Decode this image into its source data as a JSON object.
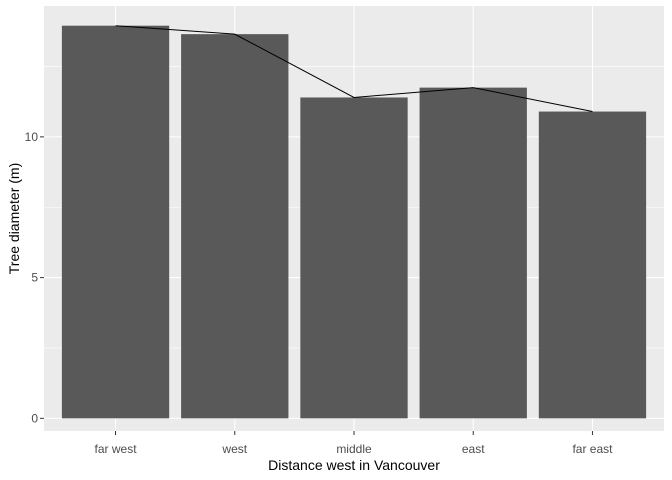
{
  "chart_data": {
    "type": "bar",
    "categories": [
      "far west",
      "west",
      "middle",
      "east",
      "far east"
    ],
    "values": [
      13.95,
      13.65,
      11.4,
      11.75,
      10.9
    ],
    "overlay_line": {
      "type": "line",
      "values": [
        13.95,
        13.65,
        11.4,
        11.75,
        10.9
      ]
    },
    "xlabel": "Distance west in Vancouver",
    "ylabel": "Tree diameter (m)",
    "ylim": [
      -0.45,
      14.65
    ],
    "yticks": [
      0,
      5,
      10
    ],
    "grid": true,
    "colors": {
      "panel": "#EBEBEB",
      "grid_major": "#FFFFFF",
      "bar": "#595959",
      "line": "#000000",
      "tick_text": "#4D4D4D",
      "tick_mark": "#333333"
    }
  }
}
